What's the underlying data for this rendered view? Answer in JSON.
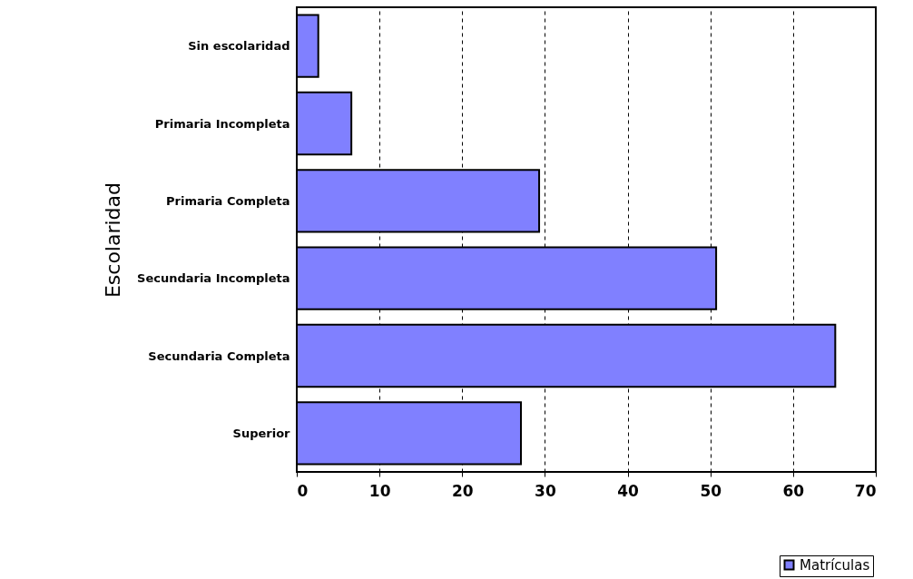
{
  "chart_data": {
    "type": "bar",
    "orientation": "horizontal",
    "ylabel": "Escolaridad",
    "categories": [
      "Sin escolaridad",
      "Primaria Incompleta",
      "Primaria Completa",
      "Secundaria Incompleta",
      "Secundaria Completa",
      "Superior"
    ],
    "series": [
      {
        "name": "Matrículas",
        "color": "#8080ff",
        "values": [
          2.6,
          6.6,
          29.3,
          50.7,
          65.1,
          27.1
        ]
      }
    ],
    "xlim": [
      0,
      70
    ],
    "xticks": [
      0,
      10,
      20,
      30,
      40,
      50,
      60,
      70
    ],
    "grid": "x",
    "legend": "bottom right"
  }
}
